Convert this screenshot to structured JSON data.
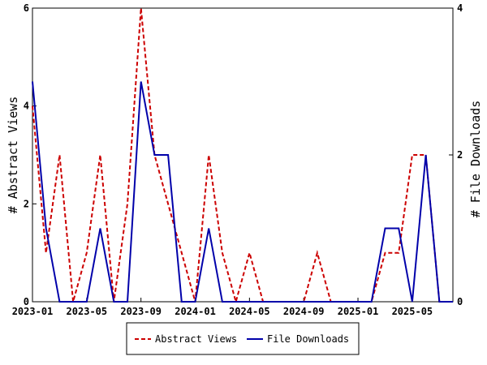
{
  "chart_data": {
    "type": "line",
    "title": "",
    "xlabel": "",
    "ylabel_left": "# Abstract Views",
    "ylabel_right": "# File Downloads",
    "x_ticks": [
      "2023-01",
      "2023-05",
      "2023-09",
      "2024-01",
      "2024-05",
      "2024-09",
      "2025-01",
      "2025-05"
    ],
    "x_tick_month_index": [
      0,
      4,
      8,
      12,
      16,
      20,
      24,
      28
    ],
    "x_range_months": [
      0,
      31
    ],
    "y_left_range": [
      0,
      6
    ],
    "y_left_ticks": [
      "0",
      "2",
      "4",
      "6"
    ],
    "y_right_range": [
      0,
      4
    ],
    "y_right_ticks": [
      "0",
      "2",
      "4"
    ],
    "months": [
      "2023-01",
      "2023-02",
      "2023-03",
      "2023-04",
      "2023-05",
      "2023-06",
      "2023-07",
      "2023-08",
      "2023-09",
      "2023-10",
      "2023-11",
      "2023-12",
      "2024-01",
      "2024-02",
      "2024-03",
      "2024-04",
      "2024-05",
      "2024-06",
      "2024-07",
      "2024-08",
      "2024-09",
      "2024-10",
      "2024-11",
      "2024-12",
      "2025-01",
      "2025-02",
      "2025-03",
      "2025-04",
      "2025-05",
      "2025-06",
      "2025-07",
      "2025-08"
    ],
    "series": [
      {
        "name": "Abstract Views",
        "axis": "left",
        "color": "#cc0000",
        "dash": "dashed",
        "values": [
          4,
          1,
          3,
          0,
          1,
          3,
          0,
          2,
          6,
          3,
          2,
          1,
          0,
          3,
          1,
          0,
          1,
          0,
          0,
          0,
          0,
          1,
          0,
          0,
          0,
          0,
          1,
          1,
          3,
          3,
          0,
          0
        ]
      },
      {
        "name": "File Downloads",
        "axis": "right",
        "color": "#0000aa",
        "dash": "solid",
        "values": [
          3,
          1,
          0,
          0,
          0,
          1,
          0,
          0,
          3,
          2,
          2,
          0,
          0,
          1,
          0,
          0,
          0,
          0,
          0,
          0,
          0,
          0,
          0,
          0,
          0,
          0,
          1,
          1,
          0,
          2,
          0,
          0
        ]
      }
    ],
    "grid": false,
    "legend": {
      "position": "bottom-center",
      "items": [
        {
          "label": "Abstract Views",
          "color": "#cc0000",
          "dash": "dashed"
        },
        {
          "label": "File Downloads",
          "color": "#0000aa",
          "dash": "solid"
        }
      ]
    }
  }
}
